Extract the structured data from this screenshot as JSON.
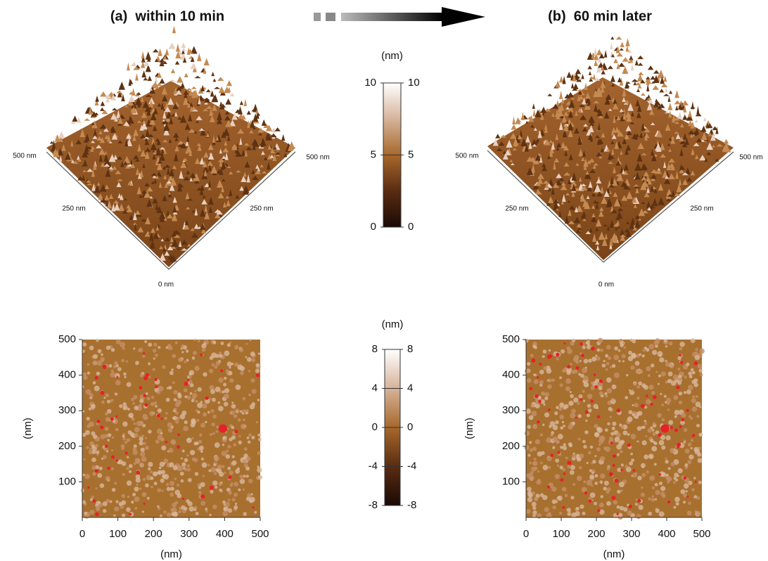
{
  "panels": [
    {
      "title": "(a)  within 10 min",
      "surface": {
        "labels": [
          "500 nm",
          "500 nm",
          "250 nm",
          "250 nm",
          "0 nm"
        ]
      },
      "map": {
        "xlim": [
          0,
          500
        ],
        "ylim": [
          0,
          500
        ],
        "xticks": [
          0,
          100,
          200,
          300,
          400,
          500
        ],
        "yticks": [
          100,
          200,
          300,
          400,
          500
        ],
        "xlabel": "(nm)",
        "ylabel": "(nm)"
      }
    },
    {
      "title": "(b)  60 min later",
      "surface": {
        "labels": [
          "500 nm",
          "500 nm",
          "250 nm",
          "250 nm",
          "0 nm"
        ]
      },
      "map": {
        "xlim": [
          0,
          500
        ],
        "ylim": [
          0,
          500
        ],
        "xticks": [
          0,
          100,
          200,
          300,
          400,
          500
        ],
        "yticks": [
          100,
          200,
          300,
          400,
          500
        ],
        "xlabel": "(nm)",
        "ylabel": "(nm)"
      }
    }
  ],
  "colorbars": [
    {
      "unit": "(nm)",
      "ticks": [
        0,
        5,
        10
      ]
    },
    {
      "unit": "(nm)",
      "ticks": [
        -8,
        -4,
        0,
        4,
        8
      ]
    }
  ]
}
